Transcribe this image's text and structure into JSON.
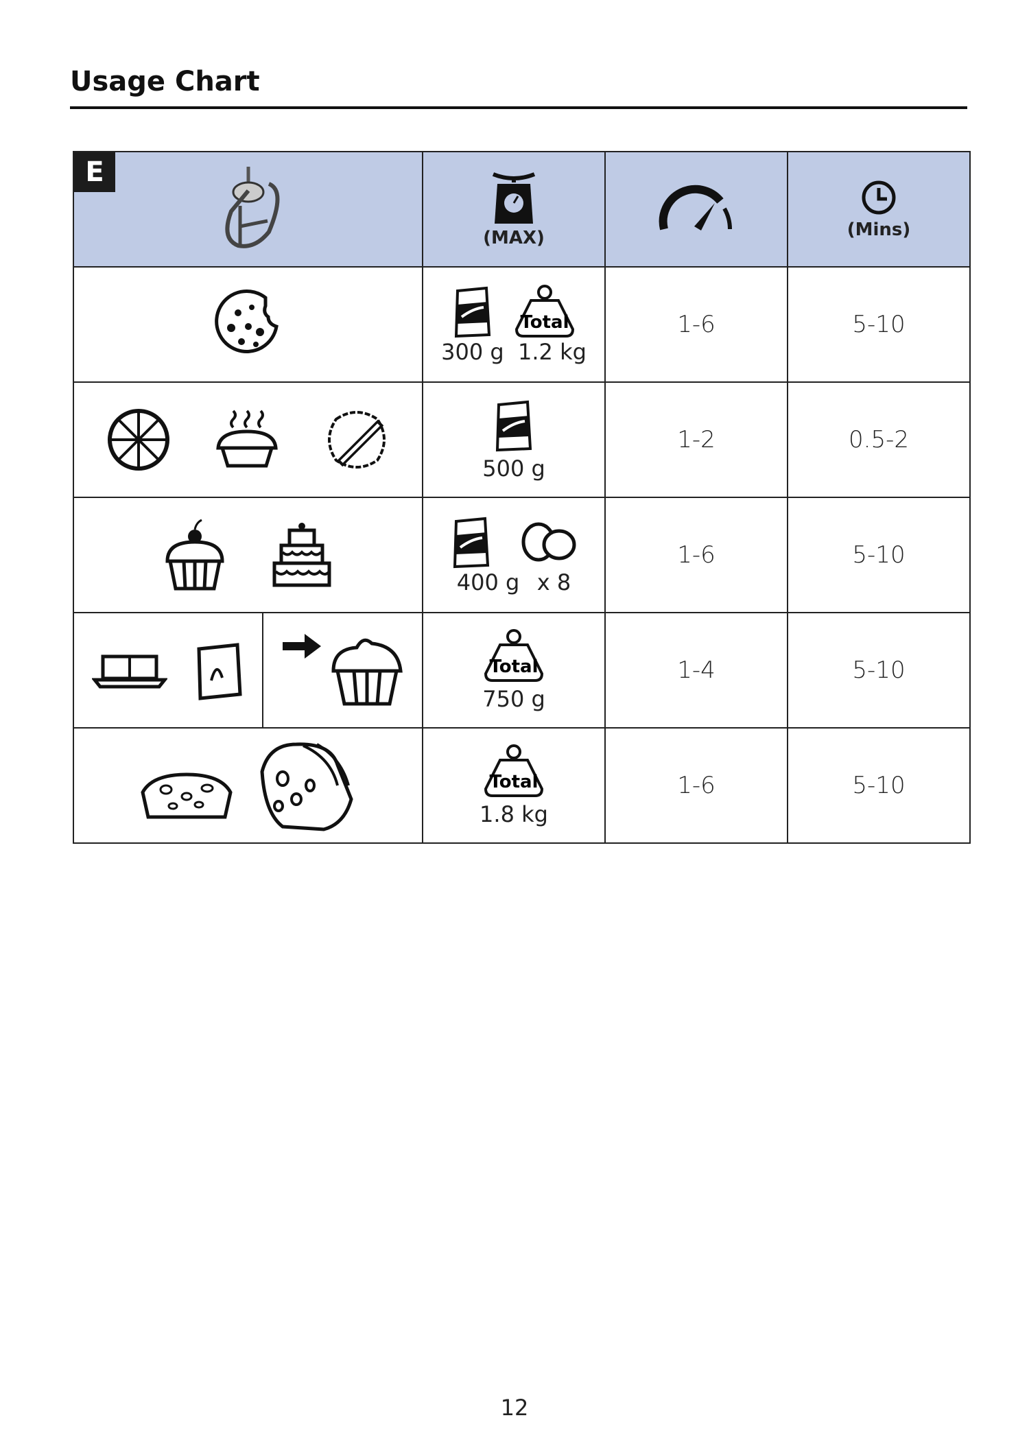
{
  "title": "Usage Chart",
  "section_badge": "E",
  "header": {
    "capacity_label": "(MAX)",
    "time_label": "(Mins)"
  },
  "rows": [
    {
      "foods": [
        "cookie"
      ],
      "quantities": [
        "300 g",
        "1.2 kg"
      ],
      "quantity_icons": [
        "flour-bag",
        "weight-total"
      ],
      "speed": "1-6",
      "time": "5-10"
    },
    {
      "foods": [
        "pizza",
        "pie",
        "pastry-dough"
      ],
      "quantities": [
        "500 g"
      ],
      "quantity_icons": [
        "flour-bag"
      ],
      "speed": "1-2",
      "time": "0.5-2"
    },
    {
      "foods": [
        "cupcake",
        "layer-cake"
      ],
      "quantities": [
        "400 g",
        "x 8"
      ],
      "quantity_icons": [
        "flour-bag",
        "eggs"
      ],
      "speed": "1-6",
      "time": "5-10"
    },
    {
      "foods": [
        "butter",
        "sugar",
        "frosted-cupcake"
      ],
      "quantities": [
        "750 g"
      ],
      "quantity_icons": [
        "weight-total"
      ],
      "speed": "1-4",
      "time": "5-10"
    },
    {
      "foods": [
        "fruit-cake-slice",
        "fruit-loaf"
      ],
      "quantities": [
        "1.8 kg"
      ],
      "quantity_icons": [
        "weight-total"
      ],
      "speed": "1-6",
      "time": "5-10"
    }
  ],
  "total_label": "Total",
  "page_number": "12"
}
